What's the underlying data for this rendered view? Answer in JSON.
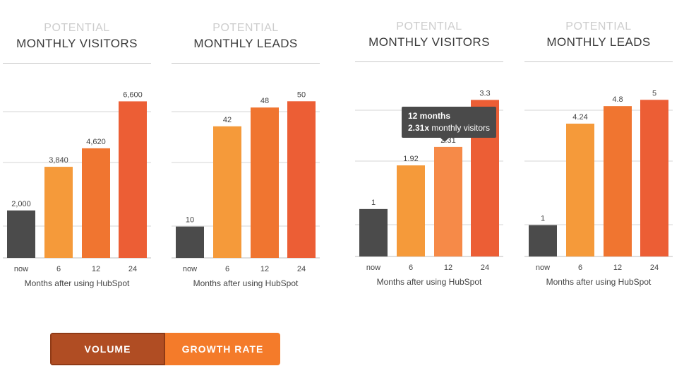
{
  "colors": {
    "now": "#4b4b4b",
    "m6": "#f59a3a",
    "m12": "#f07530",
    "m12_hover": "#f68a48",
    "m24": "#ec5e35",
    "grid": "#d4d4d4",
    "tooltip_bg": "#4a4a4a"
  },
  "chart_data": [
    {
      "type": "bar",
      "kicker": "POTENTIAL",
      "title": "MONTHLY VISITORS",
      "categories": [
        "now",
        "6",
        "12",
        "24"
      ],
      "values": [
        2000,
        3840,
        4620,
        6600
      ],
      "value_labels": [
        "2,000",
        "3,840",
        "4,620",
        "6,600"
      ],
      "xlabel": "Months after using HubSpot",
      "ylim": [
        0,
        7000
      ]
    },
    {
      "type": "bar",
      "kicker": "POTENTIAL",
      "title": "MONTHLY LEADS",
      "categories": [
        "now",
        "6",
        "12",
        "24"
      ],
      "values": [
        10,
        42,
        48,
        50
      ],
      "value_labels": [
        "10",
        "42",
        "48",
        "50"
      ],
      "xlabel": "Months after using HubSpot",
      "ylim": [
        0,
        53
      ]
    },
    {
      "type": "bar",
      "kicker": "POTENTIAL",
      "title": "MONTHLY VISITORS",
      "categories": [
        "now",
        "6",
        "12",
        "24"
      ],
      "values": [
        1,
        1.92,
        2.31,
        3.3
      ],
      "value_labels": [
        "1",
        "1.92",
        "2.31",
        "3.3"
      ],
      "xlabel": "Months after using HubSpot",
      "ylim": [
        0,
        3.5
      ],
      "tooltip": {
        "index": 2,
        "line1": "12 months",
        "line2_bold": "2.31x",
        "line2_rest": " monthly visitors"
      }
    },
    {
      "type": "bar",
      "kicker": "POTENTIAL",
      "title": "MONTHLY LEADS",
      "categories": [
        "now",
        "6",
        "12",
        "24"
      ],
      "values": [
        1,
        4.24,
        4.8,
        5
      ],
      "value_labels": [
        "1",
        "4.24",
        "4.8",
        "5"
      ],
      "xlabel": "Months after using HubSpot",
      "ylim": [
        0,
        5.3
      ]
    }
  ],
  "toggle": {
    "volume_label": "VOLUME",
    "growth_label": "GROWTH RATE",
    "active": "volume"
  }
}
